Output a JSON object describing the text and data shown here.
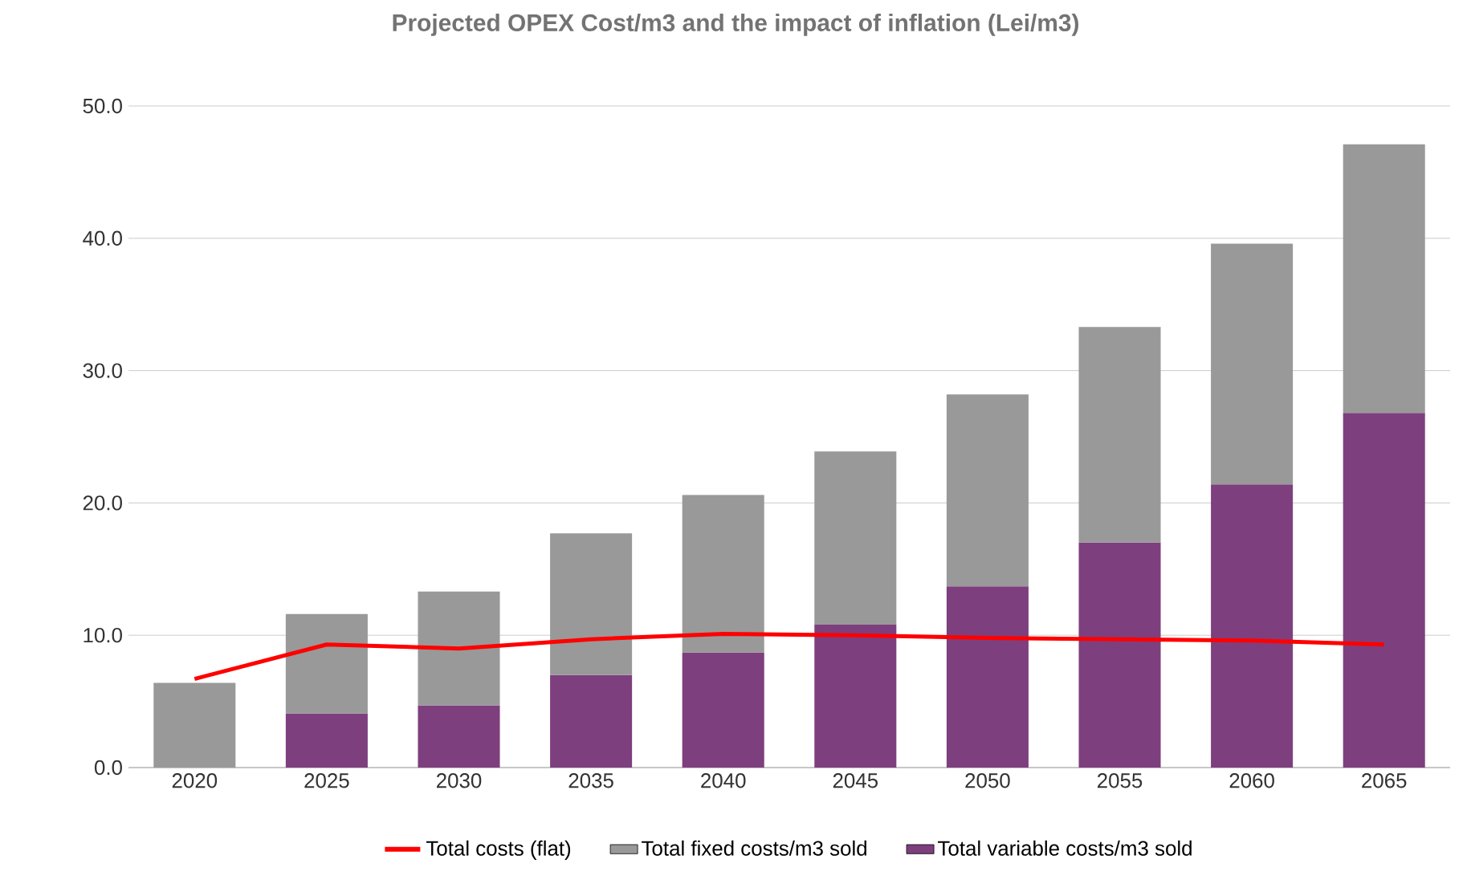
{
  "chart_data": {
    "type": "bar",
    "stacked": true,
    "title": "Projected OPEX Cost/m3 and the impact of inflation (Lei/m3)",
    "categories": [
      "2020",
      "2025",
      "2030",
      "2035",
      "2040",
      "2045",
      "2050",
      "2055",
      "2060",
      "2065"
    ],
    "series": [
      {
        "name": "Total variable costs/m3 sold",
        "color": "#7e3f7e",
        "values": [
          0,
          4.1,
          4.7,
          7.0,
          8.7,
          10.8,
          13.7,
          17.0,
          21.4,
          26.8
        ]
      },
      {
        "name": "Total fixed costs/m3 sold",
        "color": "#999999",
        "values": [
          6.4,
          7.5,
          8.6,
          10.7,
          11.9,
          13.1,
          14.5,
          16.3,
          18.2,
          20.3
        ]
      },
      {
        "name": "Total costs (flat)",
        "type": "line",
        "color": "#ff0000",
        "values": [
          6.7,
          9.3,
          9.0,
          9.7,
          10.1,
          10.0,
          9.8,
          9.7,
          9.6,
          9.3
        ]
      }
    ],
    "ylim": [
      0,
      50
    ],
    "yticks": [
      {
        "value": 0,
        "label": "0.0"
      },
      {
        "value": 10,
        "label": "10.0"
      },
      {
        "value": 20,
        "label": "20.0"
      },
      {
        "value": 30,
        "label": "30.0"
      },
      {
        "value": 40,
        "label": "40.0"
      },
      {
        "value": 50,
        "label": "50.0"
      }
    ],
    "grid": "y",
    "legend": "bottom"
  }
}
